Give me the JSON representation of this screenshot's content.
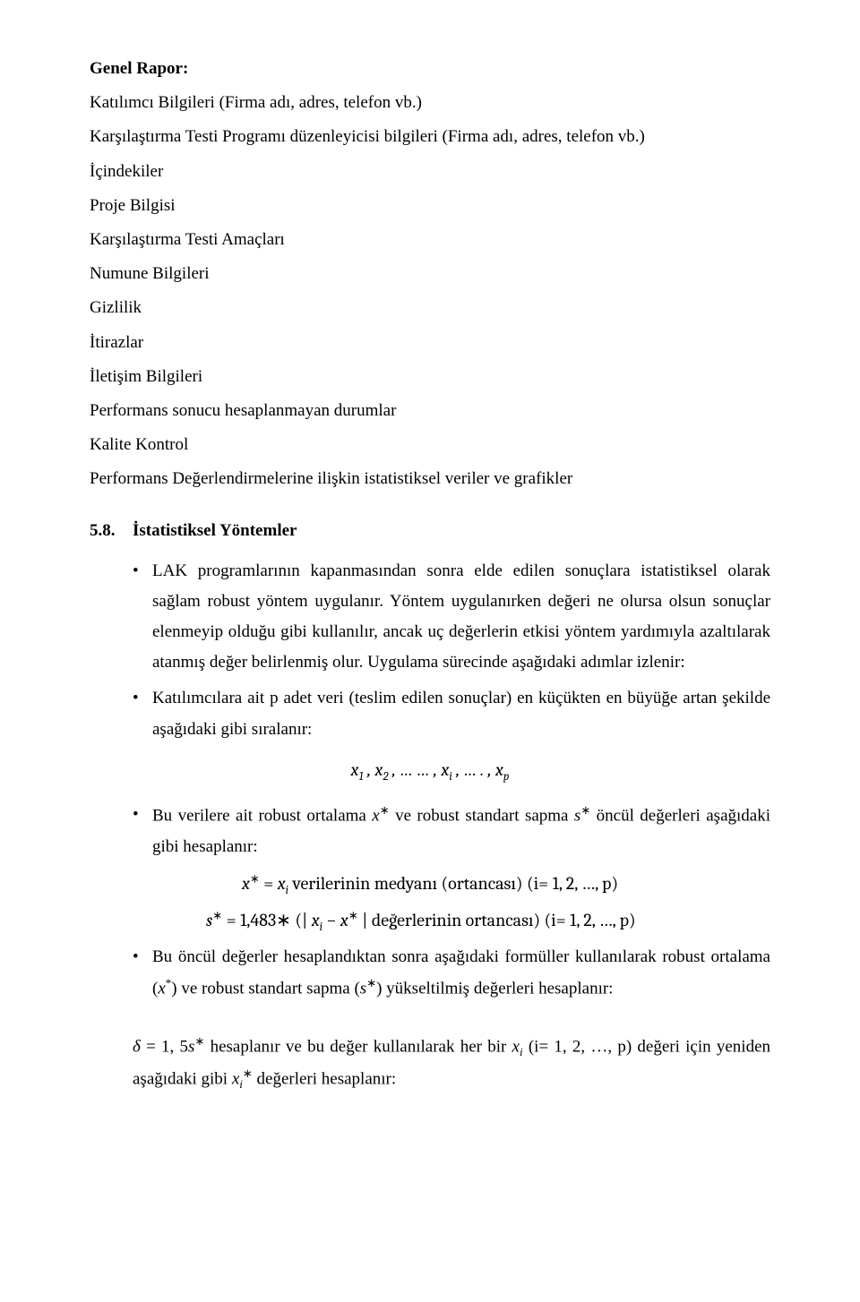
{
  "heading": {
    "title": "Genel Rapor:",
    "lines": [
      "Katılımcı Bilgileri (Firma adı, adres, telefon vb.)",
      "Karşılaştırma Testi Programı düzenleyicisi bilgileri (Firma adı, adres, telefon vb.)",
      "İçindekiler",
      "Proje Bilgisi",
      "Karşılaştırma Testi Amaçları",
      "Numune Bilgileri",
      "Gizlilik",
      "İtirazlar",
      "İletişim Bilgileri",
      "Performans sonucu hesaplanmayan durumlar",
      "Kalite Kontrol",
      "Performans Değerlendirmelerine ilişkin istatistiksel veriler ve grafikler"
    ]
  },
  "section": {
    "number": "5.8.",
    "title": "İstatistiksel Yöntemler"
  },
  "bullets1": [
    "LAK programlarının kapanmasından sonra elde edilen sonuçlara istatistiksel olarak sağlam robust yöntem uygulanır. Yöntem uygulanırken değeri ne olursa olsun sonuçlar elenmeyip olduğu gibi kullanılır, ancak uç değerlerin etkisi yöntem yardımıyla azaltılarak atanmış değer belirlenmiş olur. Uygulama sürecinde aşağıdaki adımlar izlenir:",
    "Katılımcılara ait p adet veri (teslim edilen sonuçlar) en küçükten en büyüğe artan şekilde aşağıdaki gibi sıralanır:"
  ],
  "formula1": "x₁ , x₂ , … … , xᵢ , … . , xₚ",
  "bullet3": {
    "pre": "Bu verilere ait robust ortalama  ",
    "sym1": "x*",
    "mid": " ve robust standart sapma ",
    "sym2": "s*",
    "post": " öncül değerleri aşağıdaki gibi hesaplanır:"
  },
  "formula2a": {
    "lhs": "x* = xᵢ",
    "rest": " verilerinin medyanı (ortancası)    (i= 1, 2, …, p)"
  },
  "formula2b": {
    "lhs": "s* = ",
    "coef": "1,483∗",
    "mid": " (| xᵢ − x* |",
    "rest": " değerlerinin ortancası) (i= 1, 2, …, p)"
  },
  "bullet4": {
    "pre": "Bu öncül değerler hesaplandıktan sonra aşağıdaki formüller kullanılarak robust ortalama (",
    "sym1": "x*",
    "mid1": ")  ve robust standart sapma (",
    "sym2": "s*",
    "post": ") yükseltilmiş değerleri hesaplanır:"
  },
  "last": {
    "l1a": "δ = 1, 5s*",
    "l1b": "  hesaplanır ve bu değer kullanılarak her bir ",
    "l1c": "xᵢ",
    "l1d": " (i= 1, 2, …, p) değeri için yeniden aşağıdaki gibi ",
    "l1e": "xᵢ*",
    "l1f": " değerleri hesaplanır:"
  }
}
